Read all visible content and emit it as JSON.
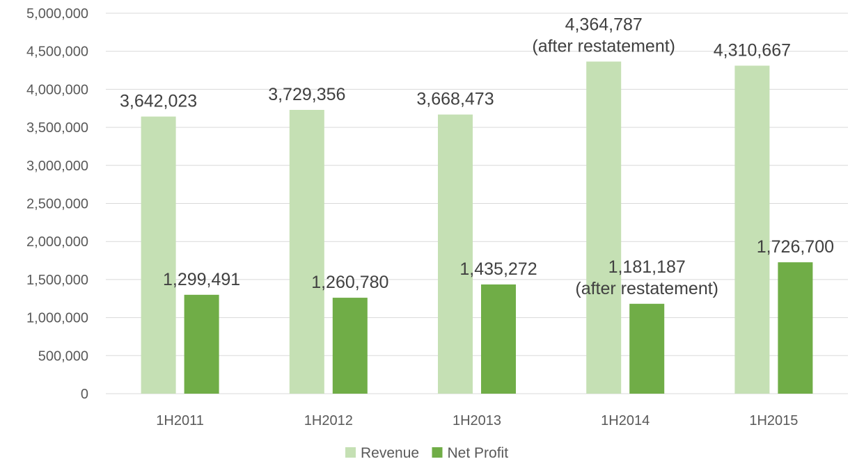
{
  "chart_data": {
    "type": "bar",
    "categories": [
      "1H2011",
      "1H2012",
      "1H2013",
      "1H2014",
      "1H2015"
    ],
    "series": [
      {
        "name": "Revenue",
        "color": "#c5e0b4",
        "values": [
          3642023,
          3729356,
          3668473,
          4364787,
          4310667
        ],
        "labels": [
          "3,642,023",
          "3,729,356",
          "3,668,473",
          "4,364,787\n(after restatement)",
          "4,310,667"
        ]
      },
      {
        "name": "Net Profit",
        "color": "#70ad47",
        "values": [
          1299491,
          1260780,
          1435272,
          1181187,
          1726700
        ],
        "labels": [
          "1,299,491",
          "1,260,780",
          "1,435,272",
          "1,181,187\n(after restatement)",
          "1,726,700"
        ]
      }
    ],
    "y_ticks": [
      "0",
      "500,000",
      "1,000,000",
      "1,500,000",
      "2,000,000",
      "2,500,000",
      "3,000,000",
      "3,500,000",
      "4,000,000",
      "4,500,000",
      "5,000,000"
    ],
    "ylim": [
      0,
      5000000
    ],
    "grid": true,
    "legend_position": "bottom"
  }
}
